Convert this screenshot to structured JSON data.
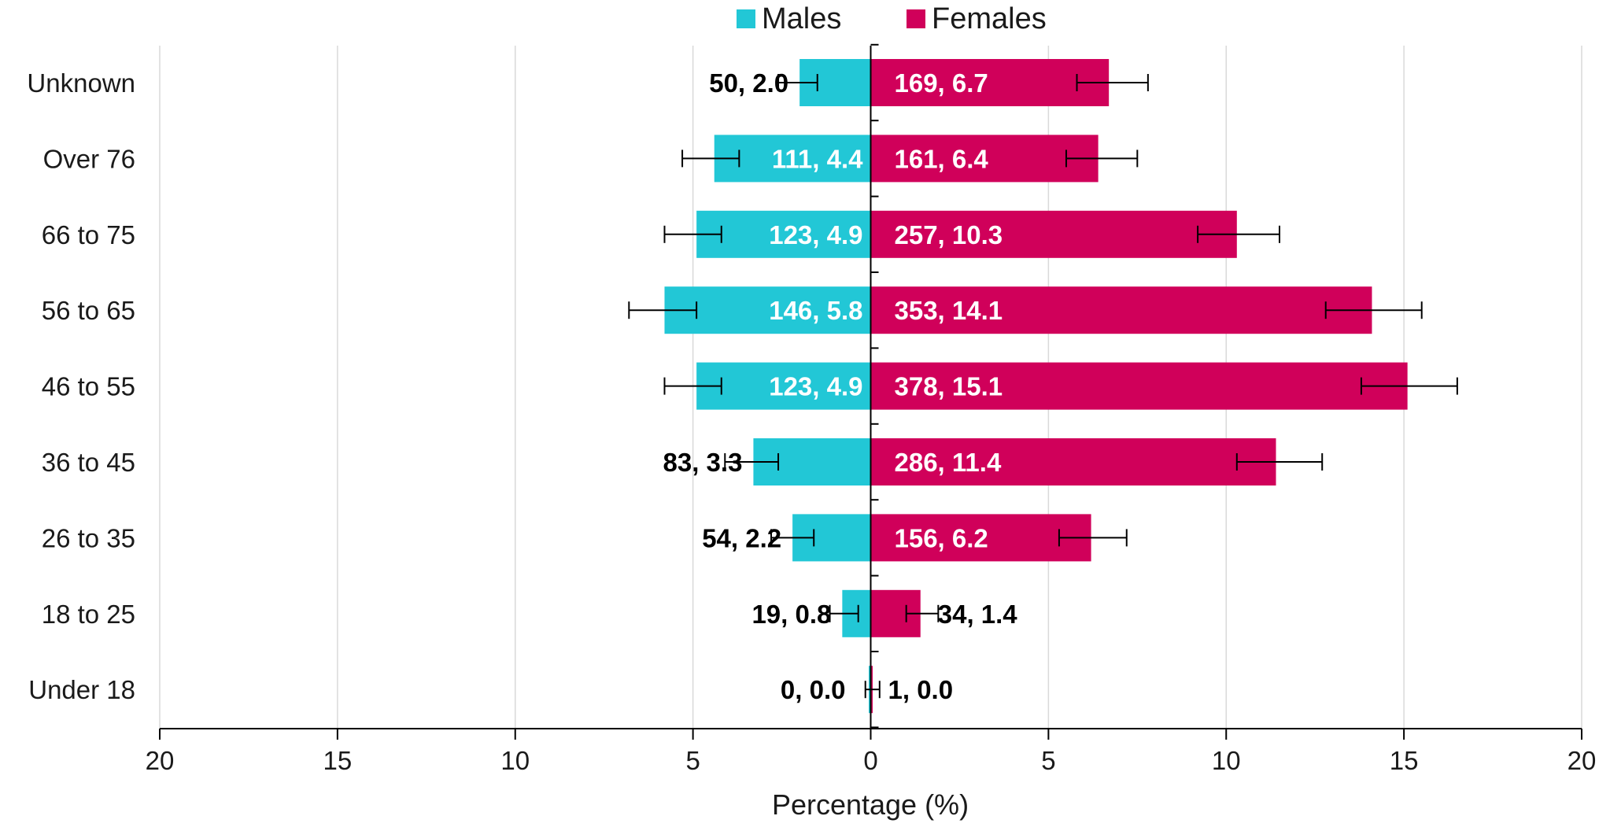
{
  "chart_data": {
    "type": "bar",
    "orientation": "horizontal-diverging",
    "categories": [
      "Unknown",
      "Over 76",
      "66 to 75",
      "56 to 65",
      "46 to 55",
      "36 to 45",
      "26 to 35",
      "18 to 25",
      "Under 18"
    ],
    "series": [
      {
        "name": "Males",
        "side": "left",
        "color": "#22c7d6",
        "values": [
          2.0,
          4.4,
          4.9,
          5.8,
          4.9,
          3.3,
          2.2,
          0.8,
          0.0
        ],
        "counts": [
          50,
          111,
          123,
          146,
          123,
          83,
          54,
          19,
          0
        ],
        "labels": [
          "50, 2.0",
          "111, 4.4",
          "123, 4.9",
          "146, 5.8",
          "123, 4.9",
          "83, 3.3",
          "54, 2.2",
          "19, 0.8",
          "0, 0.0"
        ],
        "error_low": [
          1.5,
          3.7,
          4.2,
          4.9,
          4.2,
          2.6,
          1.6,
          0.35,
          0.0
        ],
        "error_high": [
          2.6,
          5.3,
          5.8,
          6.8,
          5.8,
          4.1,
          2.8,
          1.15,
          0.15
        ]
      },
      {
        "name": "Females",
        "side": "right",
        "color": "#d0005a",
        "values": [
          6.7,
          6.4,
          10.3,
          14.1,
          15.1,
          11.4,
          6.2,
          1.4,
          0.0
        ],
        "counts": [
          169,
          161,
          257,
          353,
          378,
          286,
          156,
          34,
          1
        ],
        "labels": [
          "169, 6.7",
          "161, 6.4",
          "257, 10.3",
          "353, 14.1",
          "378, 15.1",
          "286, 11.4",
          "156, 6.2",
          "34, 1.4",
          "1, 0.0"
        ],
        "error_low": [
          5.8,
          5.5,
          9.2,
          12.8,
          13.8,
          10.3,
          5.3,
          1.0,
          0.0
        ],
        "error_high": [
          7.8,
          7.5,
          11.5,
          15.5,
          16.5,
          12.7,
          7.2,
          1.9,
          0.25
        ]
      }
    ],
    "xlabel": "Percentage (%)",
    "xlim": [
      -20,
      20
    ],
    "xticks": [
      -20,
      -15,
      -10,
      -5,
      0,
      5,
      10,
      15,
      20
    ],
    "xtick_labels": [
      "20",
      "15",
      "10",
      "5",
      "0",
      "5",
      "10",
      "15",
      "20"
    ],
    "grid": "vertical",
    "grid_color": "#d9d9d9",
    "legend": "top-center",
    "label_color_inside": "#ffffff",
    "label_color_outside": "#000000"
  }
}
